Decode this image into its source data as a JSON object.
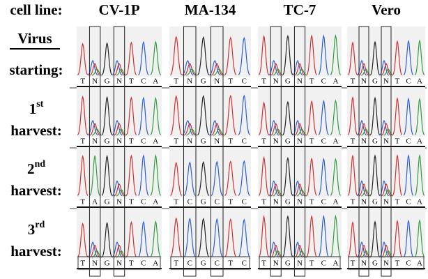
{
  "header": {
    "label": "cell line:",
    "columns": [
      "CV-1P",
      "MA-134",
      "TC-7",
      "Vero"
    ]
  },
  "virus_label": "Virus",
  "rows": [
    {
      "word": "starting:"
    },
    {
      "ordinal": "1",
      "suffix": "st",
      "word": "harvest:"
    },
    {
      "ordinal": "2",
      "suffix": "nd",
      "word": "harvest:"
    },
    {
      "ordinal": "3",
      "suffix": "rd",
      "word": "harvest:"
    }
  ],
  "sequences": [
    [
      [
        "T",
        "N",
        "G",
        "N",
        "T",
        "C",
        "A"
      ],
      [
        "T",
        "N",
        "G",
        "N",
        "T",
        "C",
        "A"
      ],
      [
        "T",
        "A",
        "G",
        "N",
        "T",
        "C",
        "A"
      ],
      [
        "T",
        "N",
        "G",
        "N",
        "T",
        "C",
        "A"
      ]
    ],
    [
      [
        "T",
        "N",
        "G",
        "N",
        "T",
        "C"
      ],
      [
        "T",
        "N",
        "G",
        "N",
        "T",
        "C"
      ],
      [
        "T",
        "C",
        "G",
        "C",
        "T",
        "C"
      ],
      [
        "T",
        "C",
        "G",
        "C",
        "T",
        "C"
      ]
    ],
    [
      [
        "T",
        "N",
        "G",
        "N",
        "T",
        "C",
        "A"
      ],
      [
        "T",
        "N",
        "G",
        "N",
        "T",
        "C",
        "A"
      ],
      [
        "T",
        "N",
        "G",
        "N",
        "T",
        "C",
        "A"
      ],
      [
        "T",
        "N",
        "G",
        "N",
        "T",
        "C",
        "A"
      ]
    ],
    [
      [
        "T",
        "N",
        "G",
        "N",
        "T",
        "C",
        "A"
      ],
      [
        "T",
        "N",
        "G",
        "N",
        "T",
        "C",
        "A"
      ],
      [
        "T",
        "N",
        "G",
        "N",
        "T",
        "C",
        "A"
      ],
      [
        "T",
        "N",
        "G",
        "N",
        "T",
        "C",
        "A"
      ]
    ]
  ]
}
